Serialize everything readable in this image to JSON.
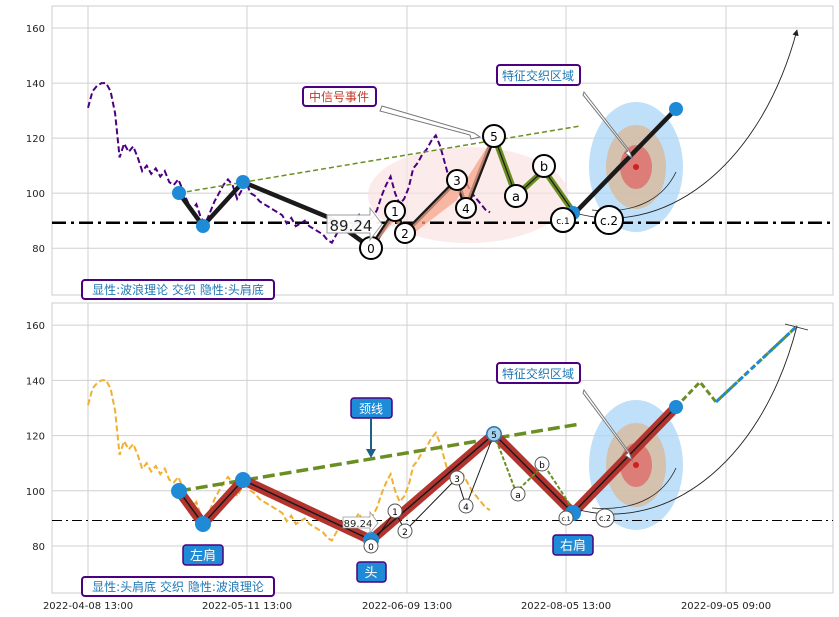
{
  "chart_data": [
    {
      "type": "line",
      "panel": "top",
      "ylim": [
        63,
        168
      ],
      "yticks": [
        80,
        100,
        120,
        140,
        160
      ],
      "xticks": [
        "2022-04-08 13:00",
        "2022-05-11 13:00",
        "2022-06-09 13:00",
        "2022-08-05 13:00",
        "2022-09-05 09:00"
      ],
      "grid": true,
      "legend_text": "显性:波浪理论 交织 隐性:头肩底",
      "price_series": {
        "name": "close",
        "color": "#4b0082",
        "values": [
          131,
          137,
          139,
          140,
          140,
          137,
          129,
          113,
          118,
          115,
          117,
          113,
          108,
          110,
          107,
          109,
          106,
          108,
          104,
          103,
          105,
          101,
          97,
          94,
          96,
          91,
          89,
          93,
          97,
          100,
          103,
          105,
          103,
          98,
          101,
          104,
          100,
          99,
          97,
          96,
          95,
          94,
          93,
          92,
          89,
          91,
          88,
          89,
          90,
          88,
          87,
          86,
          85,
          83,
          82,
          85,
          88,
          90,
          86,
          89,
          92,
          88,
          90,
          91,
          94,
          99,
          103,
          106,
          100,
          96,
          98,
          102,
          109,
          111,
          114,
          116,
          119,
          121,
          117,
          111,
          105,
          102,
          104,
          106,
          103,
          100,
          98,
          96,
          94,
          93
        ]
      },
      "levels": {
        "support": 89.24,
        "support_label": "89.24"
      },
      "wave_labels": [
        "0",
        "1",
        "2",
        "3",
        "4",
        "5",
        "a",
        "b",
        "c.1",
        "c.2"
      ],
      "annotations": {
        "signal": "中信号事件",
        "zone": "特征交织区域"
      }
    },
    {
      "type": "line",
      "panel": "bottom",
      "ylim": [
        63,
        168
      ],
      "yticks": [
        80,
        100,
        120,
        140,
        160
      ],
      "xticks": [
        "2022-04-08 13:00",
        "2022-05-11 13:00",
        "2022-06-09 13:00",
        "2022-08-05 13:00",
        "2022-09-05 09:00"
      ],
      "grid": true,
      "legend_text": "显性:头肩底 交织 隐性:波浪理论",
      "price_series": {
        "name": "close",
        "color": "#f0b030",
        "values": [
          131,
          137,
          139,
          140,
          140,
          137,
          129,
          113,
          118,
          115,
          117,
          113,
          108,
          110,
          107,
          109,
          106,
          108,
          104,
          103,
          105,
          101,
          97,
          94,
          96,
          91,
          89,
          93,
          97,
          100,
          103,
          105,
          103,
          98,
          101,
          104,
          100,
          99,
          97,
          96,
          95,
          94,
          93,
          92,
          89,
          91,
          88,
          89,
          90,
          88,
          87,
          86,
          85,
          83,
          82,
          85,
          88,
          90,
          86,
          89,
          92,
          88,
          90,
          91,
          94,
          99,
          103,
          106,
          100,
          96,
          98,
          102,
          109,
          111,
          114,
          116,
          119,
          121,
          117,
          111,
          105,
          102,
          104,
          106,
          103,
          100,
          98,
          96,
          94,
          93
        ]
      },
      "levels": {
        "neckline_label": "颈线",
        "support": 89.24,
        "support_label": "89.24"
      },
      "pattern_labels": {
        "left_shoulder": "左肩",
        "head": "头",
        "right_shoulder": "右肩"
      },
      "wave_labels": [
        "0",
        "1",
        "2",
        "3",
        "4",
        "5",
        "a",
        "b",
        "c.1",
        "c.2"
      ],
      "annotations": {
        "zone": "特征交织区域"
      }
    }
  ],
  "colors": {
    "wave": "#1a1a1a",
    "pattern": "#b3332e",
    "trend": "#6b8e23",
    "marker": "#1f8ad6",
    "label_text": "#2060a0",
    "legend_border": "#4b0082",
    "signal_text": "#c0392b",
    "neck_box": "#1f8ad6"
  }
}
